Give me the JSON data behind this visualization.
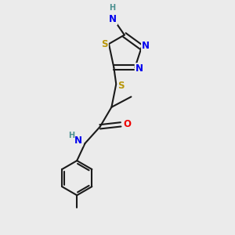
{
  "bg_color": "#ebebeb",
  "bond_color": "#1a1a1a",
  "bond_width": 1.5,
  "atom_colors": {
    "S": "#b8960a",
    "N": "#0000ee",
    "O": "#ee0000",
    "H": "#4a9090",
    "C": "#1a1a1a"
  },
  "font_size": 8.5,
  "fig_size": [
    3.0,
    3.0
  ],
  "dpi": 100,
  "xlim": [
    0,
    10
  ],
  "ylim": [
    0,
    10
  ]
}
